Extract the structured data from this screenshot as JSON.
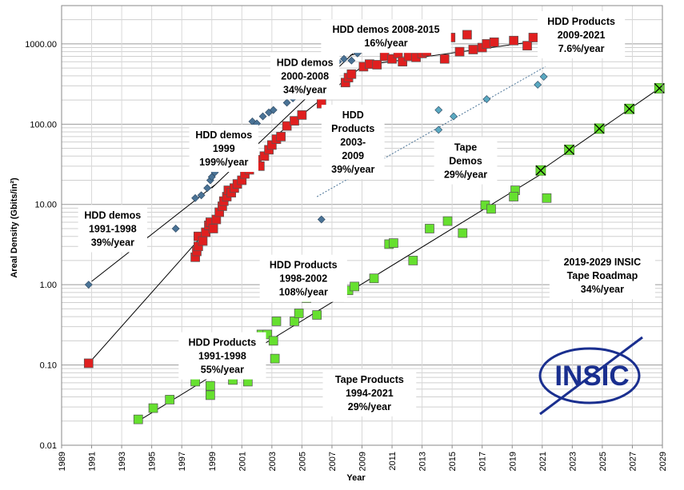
{
  "chart_data": {
    "type": "scatter",
    "xlabel": "Year",
    "ylabel": "Areal Density (Gbits/in²)",
    "xlim": [
      1989,
      2029
    ],
    "ylim": [
      0.01,
      3000
    ],
    "y_scale": "log",
    "x_ticks": [
      1989,
      1991,
      1993,
      1995,
      1997,
      1999,
      2001,
      2003,
      2005,
      2007,
      2009,
      2011,
      2013,
      2015,
      2017,
      2019,
      2021,
      2023,
      2025,
      2027,
      2029
    ],
    "y_ticks": [
      {
        "value": 0.01,
        "label": "0.01"
      },
      {
        "value": 0.1,
        "label": "0.10"
      },
      {
        "value": 1,
        "label": "1.00"
      },
      {
        "value": 10,
        "label": "10.00"
      },
      {
        "value": 100,
        "label": "100.00"
      },
      {
        "value": 1000,
        "label": "1000.00"
      }
    ],
    "grid": true,
    "series": [
      {
        "marker": "diamond",
        "color": "#4a7396",
        "points": [
          [
            1990.8,
            1.0
          ],
          [
            1993.5,
            3.0
          ],
          [
            1996.6,
            5.0
          ],
          [
            1997.9,
            12
          ],
          [
            1998.3,
            13
          ],
          [
            1998.7,
            16
          ],
          [
            1998.9,
            20
          ],
          [
            1999.0,
            22
          ],
          [
            1999.2,
            25
          ],
          [
            1999.5,
            35
          ],
          [
            2000.0,
            45
          ],
          [
            2000.1,
            58
          ],
          [
            2000.7,
            62
          ],
          [
            2000.9,
            66
          ],
          [
            2001.7,
            108
          ],
          [
            2002.0,
            102
          ],
          [
            2002.4,
            125
          ],
          [
            2002.8,
            140
          ],
          [
            2003.1,
            150
          ],
          [
            2004.0,
            185
          ],
          [
            2004.4,
            210
          ],
          [
            2004.9,
            230
          ],
          [
            2005.1,
            250
          ],
          [
            2005.3,
            270
          ],
          [
            2005.6,
            310
          ],
          [
            2006.2,
            360
          ],
          [
            2006.6,
            420
          ],
          [
            2007.1,
            500
          ],
          [
            2007.4,
            600
          ],
          [
            2007.8,
            650
          ],
          [
            2008.3,
            620
          ],
          [
            2008.7,
            760
          ],
          [
            2012.5,
            1500
          ],
          [
            2006.3,
            6.5
          ]
        ]
      },
      {
        "marker": "square",
        "color": "#e01f1f",
        "points": [
          [
            1990.8,
            0.105
          ],
          [
            1997.9,
            2.2
          ],
          [
            1998.0,
            2.6
          ],
          [
            1998.1,
            3.0
          ],
          [
            1998.1,
            4.0
          ],
          [
            1998.4,
            3.5
          ],
          [
            1998.6,
            4.5
          ],
          [
            1998.8,
            5.5
          ],
          [
            1998.9,
            6.0
          ],
          [
            1999.1,
            5.0
          ],
          [
            1999.3,
            6.5
          ],
          [
            1999.5,
            8.0
          ],
          [
            1999.7,
            9.5
          ],
          [
            1999.8,
            11
          ],
          [
            2000.0,
            12.5
          ],
          [
            2000.1,
            15
          ],
          [
            2000.3,
            14
          ],
          [
            2000.5,
            16
          ],
          [
            2000.7,
            18
          ],
          [
            2001.0,
            20
          ],
          [
            2001.2,
            24
          ],
          [
            2001.5,
            27
          ],
          [
            2001.8,
            32
          ],
          [
            2002.0,
            36
          ],
          [
            2002.2,
            30
          ],
          [
            2002.5,
            40
          ],
          [
            2002.8,
            48
          ],
          [
            2003.0,
            55
          ],
          [
            2003.3,
            65
          ],
          [
            2003.6,
            70
          ],
          [
            2004.0,
            95
          ],
          [
            2004.5,
            110
          ],
          [
            2005.0,
            130
          ],
          [
            2006.3,
            180
          ],
          [
            2006.9,
            290
          ],
          [
            2007.9,
            330
          ],
          [
            2008.1,
            380
          ],
          [
            2008.3,
            420
          ],
          [
            2009.1,
            520
          ],
          [
            2009.5,
            560
          ],
          [
            2010.0,
            550
          ],
          [
            2010.5,
            700
          ],
          [
            2011.0,
            650
          ],
          [
            2011.4,
            760
          ],
          [
            2011.7,
            600
          ],
          [
            2012.1,
            700
          ],
          [
            2012.6,
            680
          ],
          [
            2013.0,
            760
          ],
          [
            2013.3,
            800
          ],
          [
            2013.9,
            1000
          ],
          [
            2014.5,
            650
          ],
          [
            2014.9,
            1200
          ],
          [
            2015.5,
            800
          ],
          [
            2016.0,
            1300
          ],
          [
            2016.4,
            850
          ],
          [
            2017.0,
            900
          ],
          [
            2017.3,
            1000
          ],
          [
            2017.8,
            1050
          ],
          [
            2019.1,
            1100
          ],
          [
            2020.0,
            950
          ],
          [
            2020.4,
            1200
          ],
          [
            2021.2,
            1150
          ]
        ]
      },
      {
        "marker": "diamond",
        "color": "#5aa9c1",
        "points": [
          [
            2009.7,
            30
          ],
          [
            2010.1,
            45
          ],
          [
            2014.1,
            150
          ],
          [
            2014.1,
            85
          ],
          [
            2015.1,
            125
          ],
          [
            2017.3,
            205
          ],
          [
            2020.7,
            310
          ],
          [
            2021.1,
            390
          ]
        ]
      },
      {
        "marker": "square",
        "color": "#66e02f",
        "points": [
          [
            1994.1,
            0.021
          ],
          [
            1995.1,
            0.029
          ],
          [
            1996.2,
            0.037
          ],
          [
            1997.9,
            0.062
          ],
          [
            1998.9,
            0.055
          ],
          [
            1998.9,
            0.042
          ],
          [
            1999.6,
            0.11
          ],
          [
            1999.9,
            0.08
          ],
          [
            2000.4,
            0.065
          ],
          [
            2000.5,
            0.12
          ],
          [
            2001.4,
            0.062
          ],
          [
            2002.2,
            0.12
          ],
          [
            2002.3,
            0.24
          ],
          [
            2002.7,
            0.24
          ],
          [
            2003.1,
            0.2
          ],
          [
            2003.3,
            0.35
          ],
          [
            2003.2,
            0.12
          ],
          [
            2004.5,
            0.35
          ],
          [
            2004.8,
            0.44
          ],
          [
            2005.3,
            0.68
          ],
          [
            2006.1,
            0.8
          ],
          [
            2006.0,
            0.42
          ],
          [
            2007.5,
            0.7
          ],
          [
            2008.1,
            0.85
          ],
          [
            2008.5,
            0.95
          ],
          [
            2009.8,
            1.2
          ],
          [
            2010.8,
            3.2
          ],
          [
            2011.1,
            3.3
          ],
          [
            2012.4,
            2.0
          ],
          [
            2013.5,
            5.0
          ],
          [
            2014.7,
            6.2
          ],
          [
            2015.7,
            4.4
          ],
          [
            2017.2,
            9.8
          ],
          [
            2017.6,
            8.8
          ],
          [
            2019.2,
            15
          ],
          [
            2019.1,
            12.5
          ],
          [
            2021.3,
            12
          ]
        ]
      },
      {
        "marker": "x-square",
        "color": "#66e02f",
        "points": [
          [
            2020.9,
            26.5
          ],
          [
            2022.8,
            48
          ],
          [
            2024.8,
            88
          ],
          [
            2026.8,
            155
          ],
          [
            2028.8,
            280
          ]
        ]
      }
    ],
    "trend_lines": [
      {
        "from": [
          1991,
          1.1
        ],
        "to": [
          1999.2,
          17.5
        ],
        "color": "#000000",
        "style": "solid"
      },
      {
        "from": [
          1999.0,
          16
        ],
        "to": [
          2008.4,
          760
        ],
        "color": "#000000",
        "style": "solid"
      },
      {
        "from": [
          2008.2,
          720
        ],
        "to": [
          2012.8,
          1150
        ],
        "color": "#000000",
        "style": "solid"
      },
      {
        "from": [
          1991,
          0.115
        ],
        "to": [
          1998.1,
          3.6
        ],
        "color": "#000000",
        "style": "solid"
      },
      {
        "from": [
          1997.9,
          2.7
        ],
        "to": [
          2002.0,
          37
        ],
        "color": "#000000",
        "style": "solid"
      },
      {
        "from": [
          2003.4,
          75
        ],
        "to": [
          2009.1,
          540
        ],
        "color": "#000000",
        "style": "solid"
      },
      {
        "from": [
          2009.1,
          540
        ],
        "to": [
          2021.2,
          1120
        ],
        "color": "#000000",
        "style": "solid"
      },
      {
        "from": [
          2006.0,
          12.5
        ],
        "to": [
          2021.2,
          520
        ],
        "color": "#4a7396",
        "style": "dotted"
      },
      {
        "from": [
          1994.1,
          0.02
        ],
        "to": [
          2021.1,
          25
        ],
        "color": "#000000",
        "style": "solid"
      },
      {
        "from": [
          2020.9,
          26.5
        ],
        "to": [
          2028.8,
          280
        ],
        "color": "#000000",
        "style": "solid"
      }
    ],
    "annotations": [
      {
        "lines": [
          "HDD demos 2008-2015",
          "16%/year"
        ],
        "x": 2010.6,
        "y": 1250
      },
      {
        "lines": [
          "HDD Products",
          "2009-2021",
          "7.6%/year"
        ],
        "x": 2023.6,
        "y": 1300
      },
      {
        "lines": [
          "HDD demos",
          "2000-2008",
          "34%/year"
        ],
        "x": 2005.2,
        "y": 400
      },
      {
        "lines": [
          "HDD demos",
          "1999",
          "199%/year"
        ],
        "x": 1999.8,
        "y": 50
      },
      {
        "lines": [
          "HDD",
          "Products",
          "2003-",
          "2009",
          "39%/year"
        ],
        "x": 2008.4,
        "y": 60
      },
      {
        "lines": [
          "Tape",
          "Demos",
          "29%/year"
        ],
        "x": 2015.9,
        "y": 35
      },
      {
        "lines": [
          "HDD demos",
          "1991-1998",
          "39%/year"
        ],
        "x": 1992.4,
        "y": 5
      },
      {
        "lines": [
          "HDD Products",
          "1998-2002",
          "108%/year"
        ],
        "x": 2005.1,
        "y": 1.2
      },
      {
        "lines": [
          "2019-2029 INSIC",
          "Tape Roadmap",
          "34%/year"
        ],
        "x": 2025.0,
        "y": 1.3
      },
      {
        "lines": [
          "HDD Products",
          "1991-1998",
          "55%/year"
        ],
        "x": 1999.7,
        "y": 0.13
      },
      {
        "lines": [
          "Tape Products",
          "1994-2021",
          "29%/year"
        ],
        "x": 2009.5,
        "y": 0.045
      }
    ]
  },
  "logo": {
    "text": "INSIC",
    "color": "#1a2f8f"
  }
}
